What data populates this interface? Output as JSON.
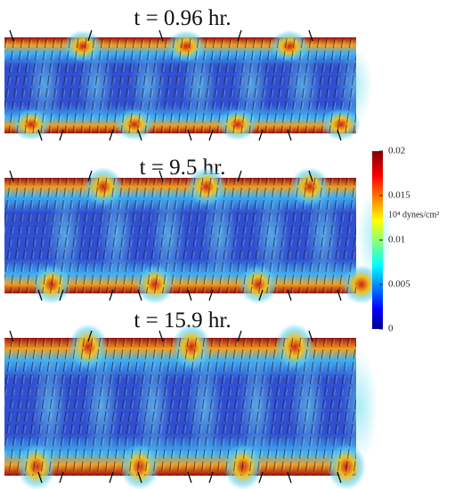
{
  "panels": [
    {
      "title": "t = 0.96 hr."
    },
    {
      "title": "t = 9.5 hr."
    },
    {
      "title": "t = 15.9 hr."
    }
  ],
  "colorbar": {
    "label": "10⁴ dynes/cm²",
    "lim": [
      0,
      0.02
    ],
    "ticks": [
      0,
      0.005,
      0.01,
      0.015,
      0.02
    ]
  }
}
